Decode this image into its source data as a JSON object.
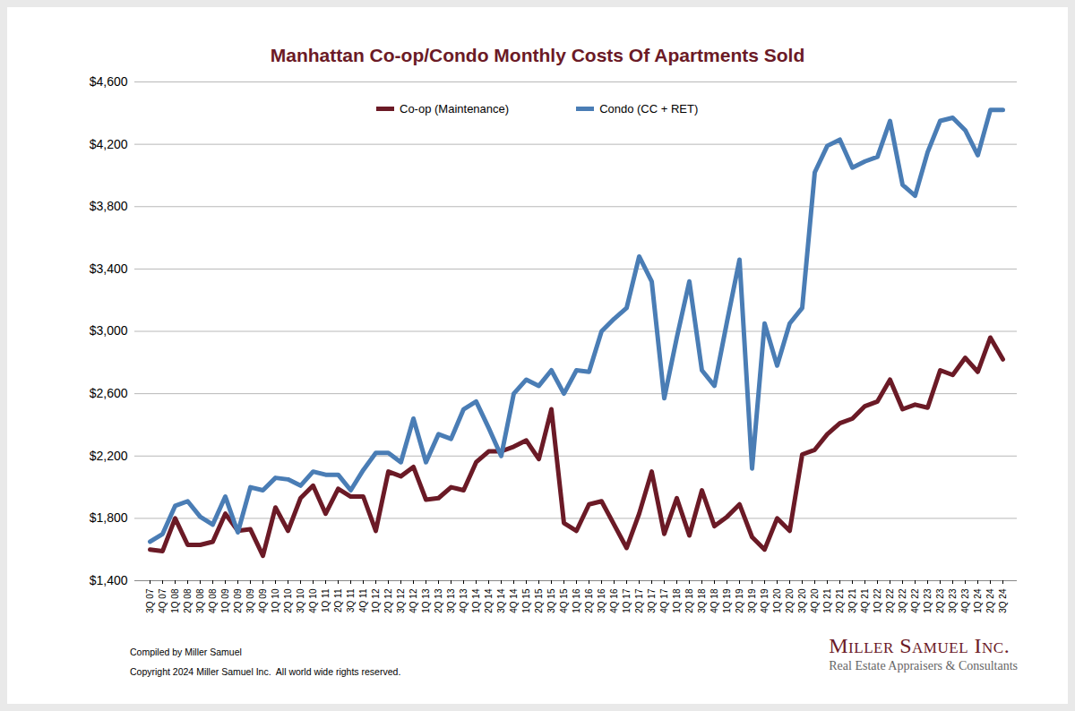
{
  "chart_data": {
    "type": "line",
    "title": "Manhattan Co-op/Condo Monthly Costs Of Apartments Sold",
    "categories": [
      "3Q 07",
      "4Q 07",
      "1Q 08",
      "2Q 08",
      "3Q 08",
      "4Q 08",
      "1Q 09",
      "2Q 09",
      "3Q 09",
      "4Q 09",
      "1Q 10",
      "2Q 10",
      "3Q 10",
      "4Q 10",
      "1Q 11",
      "2Q 11",
      "3Q 11",
      "4Q 11",
      "1Q 12",
      "2Q 12",
      "3Q 12",
      "4Q 12",
      "1Q 13",
      "2Q 13",
      "3Q 13",
      "4Q 13",
      "1Q 14",
      "2Q 14",
      "3Q 14",
      "4Q 14",
      "1Q 15",
      "2Q 15",
      "3Q 15",
      "4Q 15",
      "1Q 16",
      "2Q 16",
      "3Q 16",
      "4Q 16",
      "1Q 17",
      "2Q 17",
      "3Q 17",
      "4Q 17",
      "1Q 18",
      "2Q 18",
      "3Q 18",
      "4Q 18",
      "1Q 19",
      "2Q 19",
      "3Q 19",
      "4Q 19",
      "1Q 20",
      "2Q 20",
      "3Q 20",
      "4Q 20",
      "1Q 21",
      "2Q 21",
      "3Q 21",
      "4Q 21",
      "1Q 22",
      "2Q 22",
      "3Q 22",
      "4Q 22",
      "1Q 23",
      "2Q 23",
      "3Q 23",
      "4Q 23",
      "1Q 24",
      "2Q 24",
      "3Q 24"
    ],
    "series": [
      {
        "name": "Co-op (Maintenance)",
        "color": "#6b1a26",
        "values": [
          1600,
          1590,
          1800,
          1630,
          1630,
          1650,
          1830,
          1720,
          1730,
          1560,
          1870,
          1720,
          1930,
          2010,
          1830,
          1990,
          1940,
          1940,
          1720,
          2100,
          2070,
          2130,
          1920,
          1930,
          2000,
          1980,
          2160,
          2230,
          2230,
          2260,
          2300,
          2180,
          2500,
          1770,
          1720,
          1890,
          1910,
          1760,
          1610,
          1830,
          2100,
          1700,
          1930,
          1690,
          1980,
          1750,
          1810,
          1890,
          1680,
          1600,
          1800,
          1720,
          2210,
          2240,
          2340,
          2410,
          2440,
          2520,
          2550,
          2690,
          2500,
          2530,
          2510,
          2750,
          2720,
          2830,
          2740,
          2960,
          2820
        ]
      },
      {
        "name": "Condo (CC + RET)",
        "color": "#4a7db5",
        "values": [
          1650,
          1700,
          1880,
          1910,
          1810,
          1760,
          1940,
          1710,
          2000,
          1980,
          2060,
          2050,
          2010,
          2100,
          2080,
          2080,
          1980,
          2110,
          2220,
          2220,
          2160,
          2440,
          2160,
          2340,
          2310,
          2500,
          2550,
          2380,
          2200,
          2600,
          2690,
          2650,
          2750,
          2600,
          2750,
          2740,
          3000,
          3080,
          3150,
          3480,
          3320,
          2570,
          2960,
          3320,
          2750,
          2650,
          3060,
          3460,
          2120,
          3050,
          2780,
          3050,
          3150,
          4020,
          4190,
          4230,
          4050,
          4090,
          4120,
          4350,
          3940,
          3870,
          4150,
          4350,
          4370,
          4290,
          4130,
          4420,
          4420
        ]
      }
    ],
    "ylim": [
      1400,
      4600
    ],
    "yticks": [
      {
        "value": 1400,
        "label": "$1,400"
      },
      {
        "value": 1800,
        "label": "$1,800"
      },
      {
        "value": 2200,
        "label": "$2,200"
      },
      {
        "value": 2600,
        "label": "$2,600"
      },
      {
        "value": 3000,
        "label": "$3,000"
      },
      {
        "value": 3400,
        "label": "$3,400"
      },
      {
        "value": 3800,
        "label": "$3,800"
      },
      {
        "value": 4200,
        "label": "$4,200"
      },
      {
        "value": 4600,
        "label": "$4,600"
      }
    ],
    "grid": true,
    "legend": "top",
    "caption": "Compiled by Miller Samuel",
    "copyright": "Copyright 2024 Miller Samuel Inc.  All world wide rights reserved.",
    "logo": {
      "name": "Miller Samuel Inc.",
      "tagline": "Real Estate Appraisers & Consultants"
    }
  }
}
